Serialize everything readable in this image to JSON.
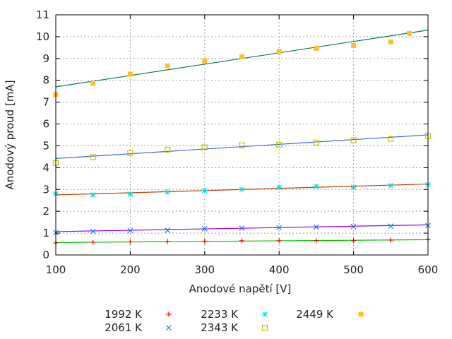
{
  "chart_data": {
    "type": "scatter",
    "title": "",
    "xlabel": "Anodové napětí [V]",
    "ylabel": "Anodový proud [mA]",
    "xlim": [
      100,
      600
    ],
    "ylim": [
      0,
      11
    ],
    "xticks": [
      100,
      200,
      300,
      400,
      500,
      600
    ],
    "yticks": [
      0,
      1,
      2,
      3,
      4,
      5,
      6,
      7,
      8,
      9,
      10,
      11
    ],
    "grid": true,
    "legend_position": "bottom",
    "series": [
      {
        "name": "1992 K",
        "marker": "plus",
        "color": "#ff0000",
        "fit_color": "#00c000",
        "x": [
          100,
          150,
          200,
          250,
          300,
          350,
          400,
          450,
          500,
          550,
          600
        ],
        "y": [
          0.55,
          0.58,
          0.6,
          0.62,
          0.63,
          0.65,
          0.65,
          0.65,
          0.66,
          0.68,
          0.7
        ],
        "fit": [
          0.57,
          0.7
        ]
      },
      {
        "name": "2061 K",
        "marker": "cross",
        "color": "#0080ff",
        "fit_color": "#a000f0",
        "x": [
          100,
          150,
          200,
          250,
          300,
          350,
          400,
          450,
          500,
          550,
          600
        ],
        "y": [
          1.02,
          1.08,
          1.12,
          1.13,
          1.2,
          1.22,
          1.25,
          1.28,
          1.3,
          1.32,
          1.35
        ],
        "fit": [
          1.07,
          1.38
        ]
      },
      {
        "name": "2233 K",
        "marker": "star",
        "color": "#00e0e0",
        "fit_color": "#c04000",
        "x": [
          100,
          150,
          200,
          250,
          300,
          350,
          400,
          450,
          500,
          550,
          600
        ],
        "y": [
          2.8,
          2.75,
          2.78,
          2.88,
          2.95,
          3.0,
          3.1,
          3.15,
          3.1,
          3.18,
          3.22
        ],
        "fit": [
          2.75,
          3.25
        ]
      },
      {
        "name": "2343 K",
        "marker": "open-square",
        "color": "#c8c800",
        "fit_color": "#4169e1",
        "x": [
          100,
          150,
          200,
          250,
          300,
          350,
          400,
          450,
          500,
          550,
          600
        ],
        "y": [
          4.22,
          4.48,
          4.67,
          4.82,
          4.93,
          5.02,
          5.05,
          5.15,
          5.25,
          5.32,
          5.45
        ],
        "fit": [
          4.42,
          5.5
        ]
      },
      {
        "name": "2449 K",
        "marker": "filled-square",
        "color": "#ffc020",
        "fit_color": "#008040",
        "x": [
          100,
          150,
          200,
          250,
          300,
          350,
          400,
          450,
          500,
          550,
          575
        ],
        "y": [
          7.35,
          7.86,
          8.28,
          8.66,
          8.89,
          9.08,
          9.31,
          9.47,
          9.6,
          9.76,
          10.15
        ],
        "fit": [
          7.7,
          10.3
        ]
      }
    ]
  }
}
